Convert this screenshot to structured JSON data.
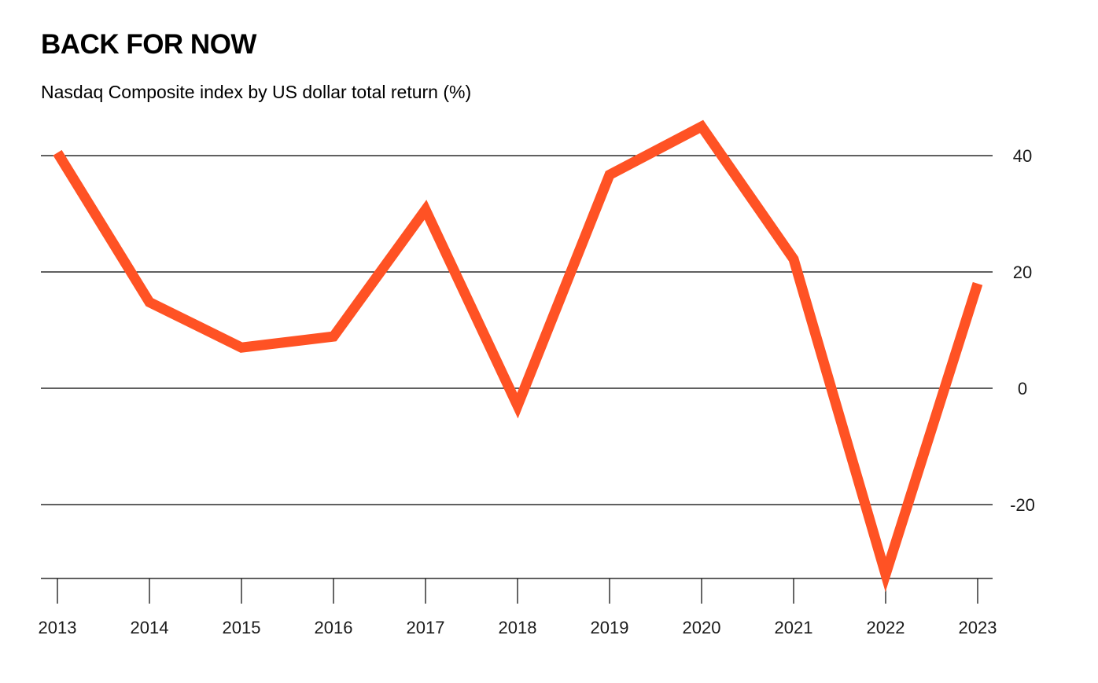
{
  "title": "BACK FOR NOW",
  "subtitle": "Nasdaq Composite index by US dollar total return (%)",
  "colors": {
    "line": "#ff5224",
    "grid": "#000000",
    "text": "#1a1a1a"
  },
  "chart_data": {
    "type": "line",
    "title": "BACK FOR NOW",
    "subtitle": "Nasdaq Composite index by US dollar total return (%)",
    "xlabel": "",
    "ylabel": "",
    "x": [
      "2013",
      "2014",
      "2015",
      "2016",
      "2017",
      "2018",
      "2019",
      "2020",
      "2021",
      "2022",
      "2023"
    ],
    "series": [
      {
        "values": [
          40.5,
          14.8,
          7.0,
          8.9,
          30.7,
          -3.0,
          36.7,
          45.0,
          22.2,
          -32.0,
          18.0
        ],
        "color": "#ff5224"
      }
    ],
    "yticks": [
      40,
      20,
      0,
      -20
    ],
    "ylim": [
      -32.5,
      45
    ],
    "grid": true,
    "yaxis_side": "right",
    "legend": "none"
  }
}
